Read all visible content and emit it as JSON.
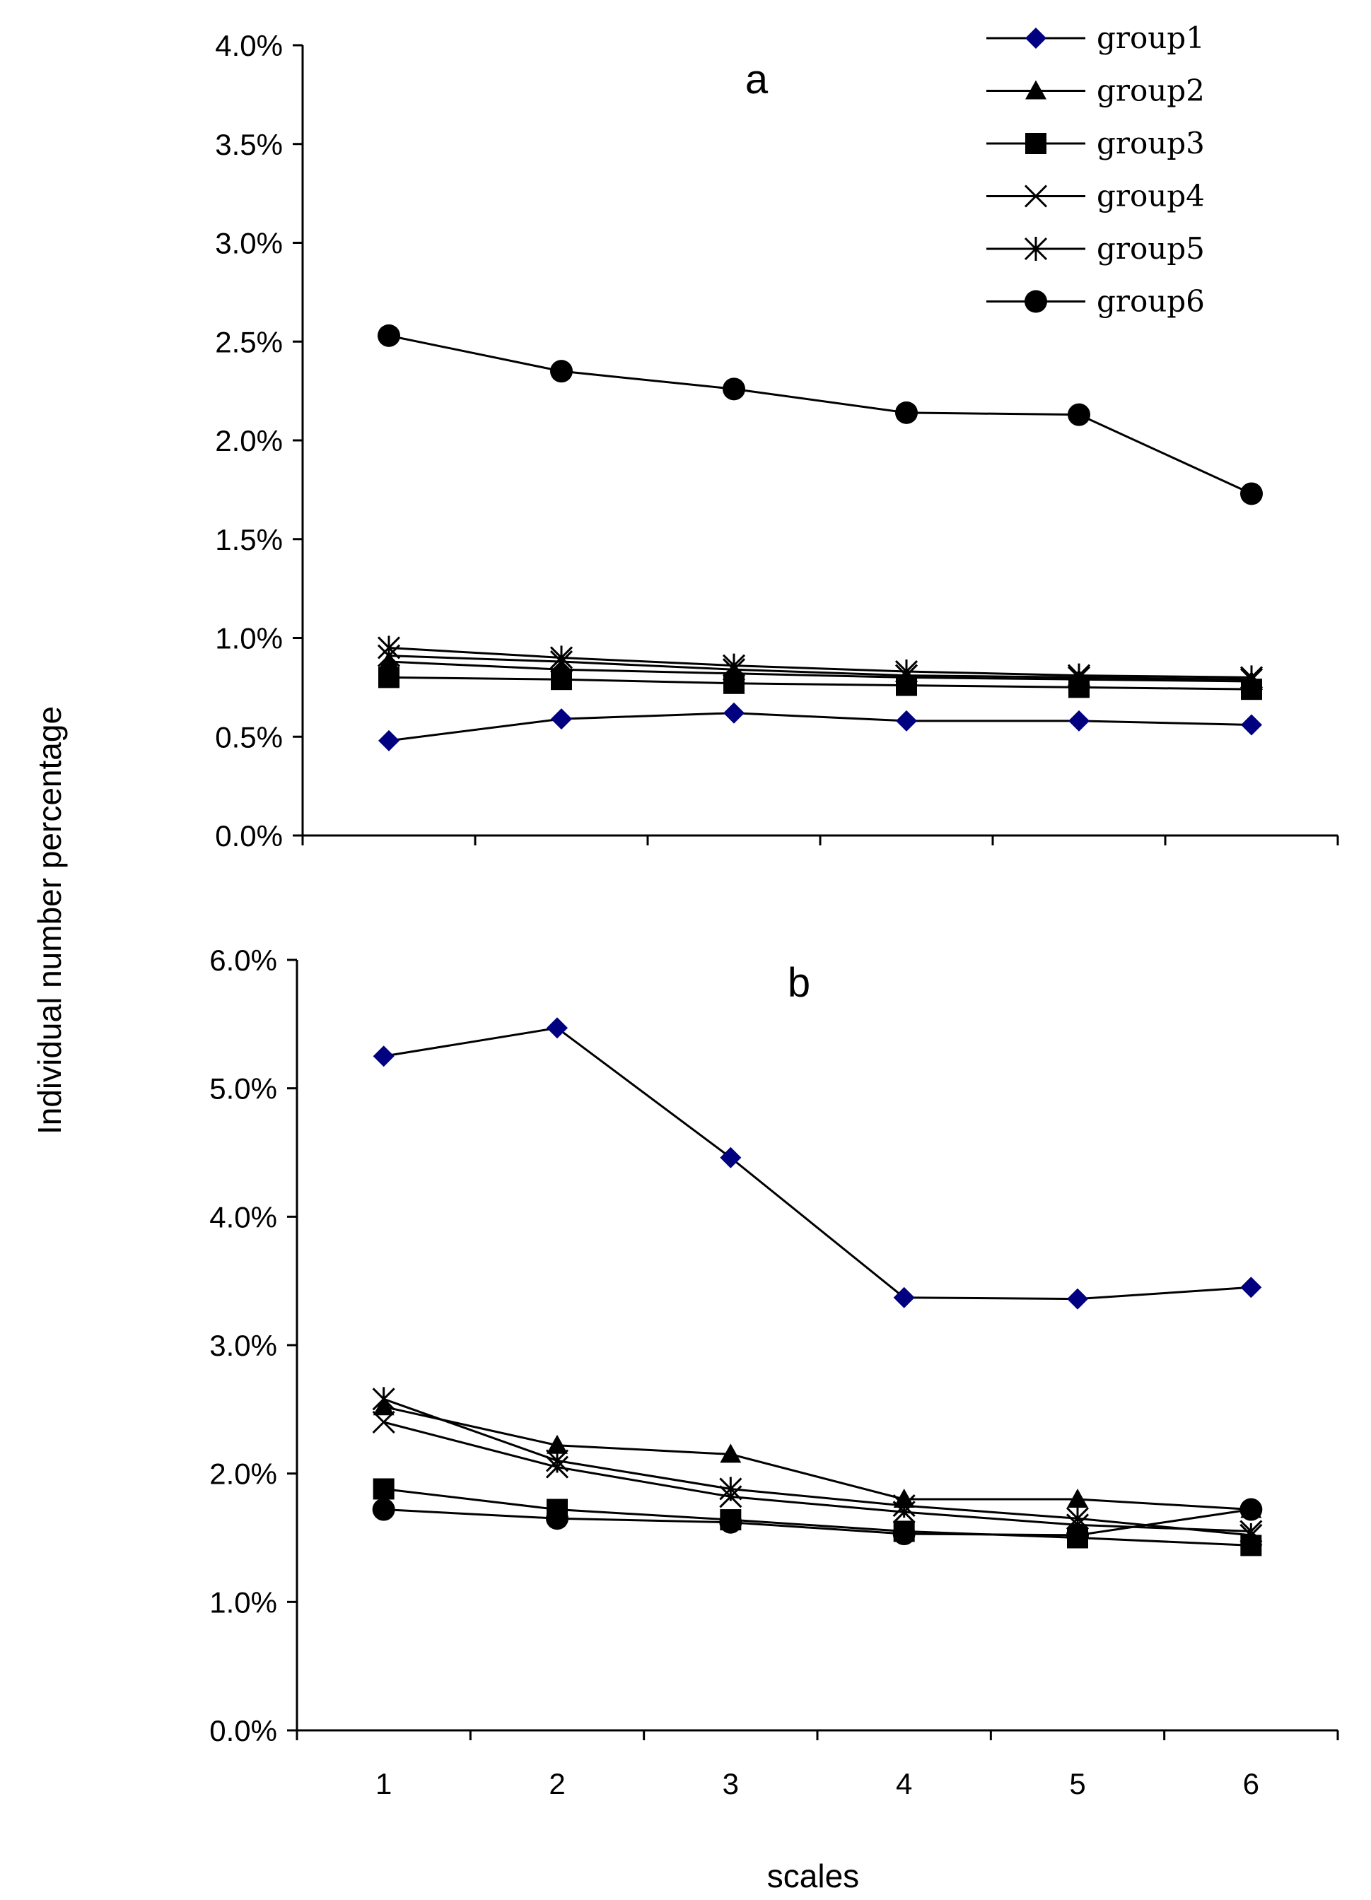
{
  "chart_data": [
    {
      "type": "line",
      "panel_label": "a",
      "categories": [
        "1",
        "2",
        "3",
        "4",
        "5",
        "6"
      ],
      "ylim": [
        0,
        4.0
      ],
      "yticks": [
        "0.0%",
        "0.5%",
        "1.0%",
        "1.5%",
        "2.0%",
        "2.5%",
        "3.0%",
        "3.5%",
        "4.0%"
      ],
      "series": [
        {
          "name": "group1",
          "values": [
            0.48,
            0.59,
            0.62,
            0.58,
            0.58,
            0.56
          ]
        },
        {
          "name": "group2",
          "values": [
            0.88,
            0.84,
            0.82,
            0.8,
            0.79,
            0.78
          ]
        },
        {
          "name": "group3",
          "values": [
            0.8,
            0.79,
            0.77,
            0.76,
            0.75,
            0.74
          ]
        },
        {
          "name": "group4",
          "values": [
            0.91,
            0.88,
            0.84,
            0.81,
            0.8,
            0.79
          ]
        },
        {
          "name": "group5",
          "values": [
            0.95,
            0.9,
            0.86,
            0.83,
            0.81,
            0.8
          ]
        },
        {
          "name": "group6",
          "values": [
            2.53,
            2.35,
            2.26,
            2.14,
            2.13,
            1.73
          ]
        }
      ]
    },
    {
      "type": "line",
      "panel_label": "b",
      "categories": [
        "1",
        "2",
        "3",
        "4",
        "5",
        "6"
      ],
      "ylim": [
        0,
        6.0
      ],
      "yticks": [
        "0.0%",
        "1.0%",
        "2.0%",
        "3.0%",
        "4.0%",
        "5.0%",
        "6.0%"
      ],
      "series": [
        {
          "name": "group1",
          "values": [
            5.25,
            5.47,
            4.46,
            3.37,
            3.36,
            3.45
          ]
        },
        {
          "name": "group2",
          "values": [
            2.52,
            2.22,
            2.15,
            1.8,
            1.8,
            1.72
          ]
        },
        {
          "name": "group3",
          "values": [
            1.88,
            1.72,
            1.64,
            1.55,
            1.5,
            1.44
          ]
        },
        {
          "name": "group4",
          "values": [
            2.4,
            2.05,
            1.82,
            1.7,
            1.6,
            1.55
          ]
        },
        {
          "name": "group5",
          "values": [
            2.58,
            2.1,
            1.88,
            1.75,
            1.65,
            1.52
          ]
        },
        {
          "name": "group6",
          "values": [
            1.72,
            1.65,
            1.62,
            1.53,
            1.52,
            1.72
          ]
        }
      ]
    }
  ],
  "shared": {
    "ylabel": "Individual number percentage",
    "xlabel": "scales",
    "legend_position": "top-right"
  },
  "styles": {
    "series_colors": {
      "group1": "#000080",
      "group2": "#000000",
      "group3": "#000000",
      "group4": "#000000",
      "group5": "#000000",
      "group6": "#000000"
    },
    "marker_shapes": {
      "group1": "diamond",
      "group2": "triangle",
      "group3": "square",
      "group4": "x",
      "group5": "asterisk",
      "group6": "circle"
    }
  }
}
